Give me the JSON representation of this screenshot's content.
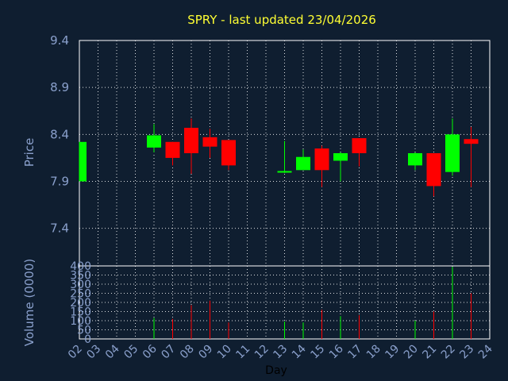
{
  "title": "SPRY - last updated 23/04/2026",
  "colors": {
    "background": "#0f1e30",
    "title": "#ffff33",
    "axis_text": "#8aa0cc",
    "up": "#00ff00",
    "down": "#ff0000",
    "grid": "#ffffff",
    "frame": "#ffffff"
  },
  "chart_data": [
    {
      "type": "candlestick",
      "ylabel": "Price",
      "ylim": [
        7.0,
        9.4
      ],
      "yticks": [
        "9.4",
        "8.9",
        "8.4",
        "7.9",
        "7.4"
      ],
      "ytick_values": [
        9.4,
        8.9,
        8.4,
        7.9,
        7.4
      ],
      "x_range": [
        2,
        24
      ],
      "grid": true,
      "candles": [
        {
          "day": 2,
          "open": 7.9,
          "high": 8.32,
          "low": 7.9,
          "close": 8.32
        },
        {
          "day": 6,
          "open": 8.26,
          "high": 8.51,
          "low": 8.21,
          "close": 8.39
        },
        {
          "day": 7,
          "open": 8.32,
          "high": 8.32,
          "low": 8.07,
          "close": 8.15
        },
        {
          "day": 8,
          "open": 8.47,
          "high": 8.57,
          "low": 7.98,
          "close": 8.2
        },
        {
          "day": 9,
          "open": 8.37,
          "high": 8.46,
          "low": 8.15,
          "close": 8.27
        },
        {
          "day": 10,
          "open": 8.34,
          "high": 8.34,
          "low": 8.02,
          "close": 8.07
        },
        {
          "day": 13,
          "open": 8.0,
          "high": 8.33,
          "low": 7.99,
          "close": 8.01
        },
        {
          "day": 14,
          "open": 8.02,
          "high": 8.24,
          "low": 8.02,
          "close": 8.16
        },
        {
          "day": 15,
          "open": 8.25,
          "high": 8.28,
          "low": 7.84,
          "close": 8.02
        },
        {
          "day": 16,
          "open": 8.12,
          "high": 8.21,
          "low": 7.9,
          "close": 8.2
        },
        {
          "day": 17,
          "open": 8.36,
          "high": 8.36,
          "low": 8.06,
          "close": 8.2
        },
        {
          "day": 20,
          "open": 8.07,
          "high": 8.21,
          "low": 8.02,
          "close": 8.2
        },
        {
          "day": 21,
          "open": 8.2,
          "high": 8.2,
          "low": 7.74,
          "close": 7.85
        },
        {
          "day": 22,
          "open": 8.0,
          "high": 8.57,
          "low": 7.96,
          "close": 8.4
        },
        {
          "day": 23,
          "open": 8.35,
          "high": 8.48,
          "low": 7.84,
          "close": 8.3
        }
      ]
    },
    {
      "type": "bar",
      "ylabel": "Volume (0000)",
      "xlabel": "Day",
      "ylim": [
        0,
        400
      ],
      "yticks": [
        "400",
        "350",
        "300",
        "250",
        "200",
        "150",
        "100",
        "50",
        "0"
      ],
      "ytick_values": [
        400,
        350,
        300,
        250,
        200,
        150,
        100,
        50,
        0
      ],
      "x_range": [
        2,
        24
      ],
      "x_tick_labels": [
        "02",
        "03",
        "04",
        "05",
        "06",
        "07",
        "08",
        "09",
        "10",
        "11",
        "12",
        "13",
        "14",
        "15",
        "16",
        "17",
        "18",
        "19",
        "20",
        "21",
        "22",
        "23",
        "24"
      ],
      "grid": true,
      "bars": [
        {
          "day": 6,
          "value": 115,
          "direction": "up"
        },
        {
          "day": 7,
          "value": 110,
          "direction": "down"
        },
        {
          "day": 8,
          "value": 185,
          "direction": "down"
        },
        {
          "day": 9,
          "value": 210,
          "direction": "down"
        },
        {
          "day": 10,
          "value": 90,
          "direction": "down"
        },
        {
          "day": 13,
          "value": 95,
          "direction": "up"
        },
        {
          "day": 14,
          "value": 90,
          "direction": "up"
        },
        {
          "day": 15,
          "value": 160,
          "direction": "down"
        },
        {
          "day": 16,
          "value": 125,
          "direction": "up"
        },
        {
          "day": 17,
          "value": 130,
          "direction": "down"
        },
        {
          "day": 20,
          "value": 100,
          "direction": "up"
        },
        {
          "day": 21,
          "value": 150,
          "direction": "down"
        },
        {
          "day": 22,
          "value": 395,
          "direction": "up"
        },
        {
          "day": 23,
          "value": 250,
          "direction": "down"
        }
      ]
    }
  ]
}
